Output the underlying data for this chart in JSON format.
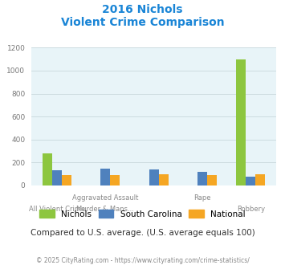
{
  "title_line1": "2016 Nichols",
  "title_line2": "Violent Crime Comparison",
  "series": {
    "Nichols": [
      280,
      0,
      0,
      0,
      1100
    ],
    "South Carolina": [
      130,
      150,
      140,
      120,
      80
    ],
    "National": [
      90,
      90,
      95,
      90,
      95
    ]
  },
  "colors": {
    "Nichols": "#8dc63f",
    "South Carolina": "#4f81bd",
    "National": "#f5a623"
  },
  "ylim": [
    0,
    1200
  ],
  "yticks": [
    0,
    200,
    400,
    600,
    800,
    1000,
    1200
  ],
  "background_color": "#e8f4f8",
  "grid_color": "#c8d8dc",
  "note": "Compared to U.S. average. (U.S. average equals 100)",
  "footer": "© 2025 CityRating.com - https://www.cityrating.com/crime-statistics/",
  "title_color": "#1a85d6",
  "footer_color": "#888888",
  "note_color": "#333333",
  "label_color": "#888888",
  "label_top": [
    "",
    "Aggravated Assault",
    "",
    "Rape",
    ""
  ],
  "label_bot": [
    "All Violent Crime",
    "Murder & Mans...",
    "",
    "",
    "Robbery"
  ]
}
